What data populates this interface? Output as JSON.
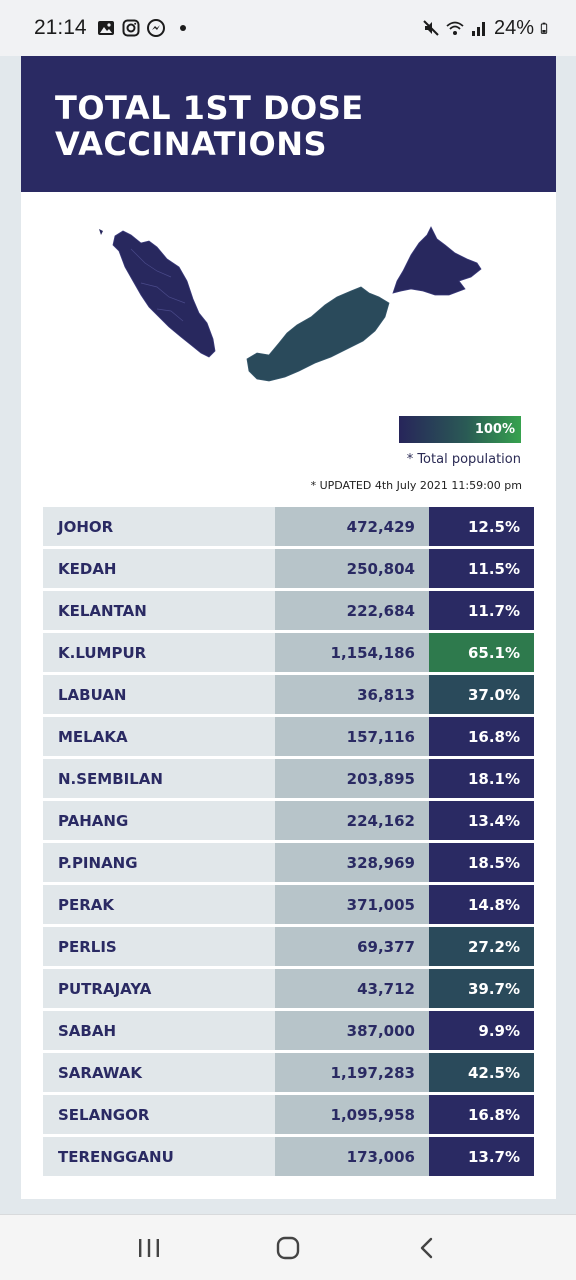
{
  "status_bar": {
    "time": "21:14",
    "battery": "24%",
    "left_icons": [
      "gallery-icon",
      "instagram-icon",
      "messenger-icon"
    ],
    "right_icons": [
      "mute-icon",
      "wifi-icon",
      "signal-icon",
      "battery-icon"
    ]
  },
  "header": {
    "title": "TOTAL 1ST DOSE\nVACCINATIONS",
    "bg_color": "#2a2a63"
  },
  "legend": {
    "label": "100%",
    "note": "* Total population"
  },
  "updated": "* UPDATED 4th July 2021 11:59:00 pm",
  "colors": {
    "dark": "#2a2a63",
    "mid": "#2a4a5b",
    "green": "#2e7a4d"
  },
  "states": [
    {
      "name": "JOHOR",
      "count": "472,429",
      "pct": "12.5%",
      "pct_value": 12.5
    },
    {
      "name": "KEDAH",
      "count": "250,804",
      "pct": "11.5%",
      "pct_value": 11.5
    },
    {
      "name": "KELANTAN",
      "count": "222,684",
      "pct": "11.7%",
      "pct_value": 11.7
    },
    {
      "name": "K.LUMPUR",
      "count": "1,154,186",
      "pct": "65.1%",
      "pct_value": 65.1
    },
    {
      "name": "LABUAN",
      "count": "36,813",
      "pct": "37.0%",
      "pct_value": 37.0
    },
    {
      "name": "MELAKA",
      "count": "157,116",
      "pct": "16.8%",
      "pct_value": 16.8
    },
    {
      "name": "N.SEMBILAN",
      "count": "203,895",
      "pct": "18.1%",
      "pct_value": 18.1
    },
    {
      "name": "PAHANG",
      "count": "224,162",
      "pct": "13.4%",
      "pct_value": 13.4
    },
    {
      "name": "P.PINANG",
      "count": "328,969",
      "pct": "18.5%",
      "pct_value": 18.5
    },
    {
      "name": "PERAK",
      "count": "371,005",
      "pct": "14.8%",
      "pct_value": 14.8
    },
    {
      "name": "PERLIS",
      "count": "69,377",
      "pct": "27.2%",
      "pct_value": 27.2
    },
    {
      "name": "PUTRAJAYA",
      "count": "43,712",
      "pct": "39.7%",
      "pct_value": 39.7
    },
    {
      "name": "SABAH",
      "count": "387,000",
      "pct": "9.9%",
      "pct_value": 9.9
    },
    {
      "name": "SARAWAK",
      "count": "1,197,283",
      "pct": "42.5%",
      "pct_value": 42.5
    },
    {
      "name": "SELANGOR",
      "count": "1,095,958",
      "pct": "16.8%",
      "pct_value": 16.8
    },
    {
      "name": "TERENGGANU",
      "count": "173,006",
      "pct": "13.7%",
      "pct_value": 13.7
    }
  ],
  "nav_bar": {
    "buttons": [
      "recent-apps-icon",
      "home-icon",
      "back-icon"
    ]
  }
}
